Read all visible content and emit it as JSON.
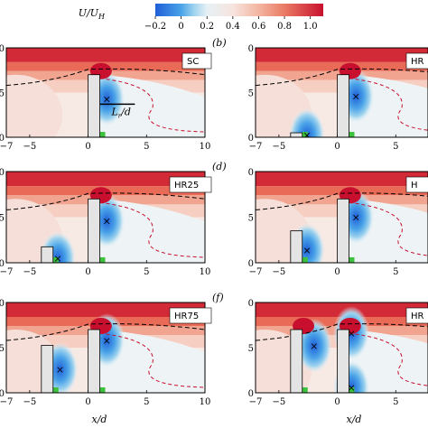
{
  "colorbar": {
    "label": "U/U",
    "label_sub": "H",
    "min": -0.2,
    "max": 1.1,
    "ticks": [
      -0.2,
      0,
      0.2,
      0.4,
      0.6,
      0.8,
      1.0
    ],
    "tick_labels": [
      "−0.2",
      "0",
      "0.2",
      "0.4",
      "0.6",
      "0.8",
      "1.0"
    ],
    "stops": [
      {
        "v": -0.2,
        "color": "#1f5fd8"
      },
      {
        "v": 0.0,
        "color": "#4aa3e8"
      },
      {
        "v": 0.1,
        "color": "#9fd3ee"
      },
      {
        "v": 0.2,
        "color": "#e6f1f6"
      },
      {
        "v": 0.4,
        "color": "#f7e4de"
      },
      {
        "v": 0.6,
        "color": "#f3b6a2"
      },
      {
        "v": 0.8,
        "color": "#ea7a64"
      },
      {
        "v": 1.1,
        "color": "#c8102e"
      }
    ]
  },
  "xlabel": "x/d",
  "ymax_label": "0",
  "ymid_label": "5",
  "ymin_label": "0",
  "recirc_label": "L",
  "recirc_label_sub": "r",
  "recirc_label_tail": "/d",
  "chart_data": [
    {
      "type": "heatmap",
      "panel": "",
      "tag": "SC",
      "col": 0,
      "row": 0,
      "xlim": [
        -7,
        10
      ],
      "ylim": [
        0,
        10
      ],
      "x_ticks": [
        -7,
        -5,
        0,
        5,
        10
      ],
      "x_tick_labels": [
        "−7",
        "−5",
        "0",
        "5",
        "10"
      ],
      "buildings": [
        {
          "x0": 0,
          "x1": 1,
          "h": 7
        }
      ],
      "vortices": [
        [
          1.6,
          4.3
        ]
      ],
      "recirc_marker": true
    },
    {
      "type": "heatmap",
      "panel": "(b)",
      "tag": "HR",
      "col": 1,
      "row": 0,
      "xlim": [
        -7,
        10
      ],
      "ylim": [
        0,
        10
      ],
      "x_ticks": [
        -7,
        -5,
        0,
        5,
        10
      ],
      "x_tick_labels": [
        "−7",
        "−5",
        "0",
        "5",
        "10"
      ],
      "buildings": [
        {
          "x0": -4,
          "x1": -3,
          "h": 0.5
        },
        {
          "x0": 0,
          "x1": 1,
          "h": 7
        }
      ],
      "vortices": [
        [
          1.6,
          4.6
        ],
        [
          -2.6,
          0.25
        ]
      ]
    },
    {
      "type": "heatmap",
      "panel": "",
      "tag": "HR25",
      "col": 0,
      "row": 1,
      "xlim": [
        -7,
        10
      ],
      "ylim": [
        0,
        10
      ],
      "x_ticks": [
        -7,
        -5,
        0,
        5,
        10
      ],
      "x_tick_labels": [
        "−7",
        "−5",
        "0",
        "5",
        "10"
      ],
      "buildings": [
        {
          "x0": -4,
          "x1": -3,
          "h": 1.75
        },
        {
          "x0": 0,
          "x1": 1,
          "h": 7
        }
      ],
      "vortices": [
        [
          1.6,
          4.6
        ],
        [
          -2.6,
          0.5
        ]
      ]
    },
    {
      "type": "heatmap",
      "panel": "(d)",
      "tag": "H",
      "col": 1,
      "row": 1,
      "xlim": [
        -7,
        10
      ],
      "ylim": [
        0,
        10
      ],
      "x_ticks": [
        -7,
        -5,
        0,
        5,
        10
      ],
      "x_tick_labels": [
        "−7",
        "−5",
        "0",
        "5",
        "10"
      ],
      "buildings": [
        {
          "x0": -4,
          "x1": -3,
          "h": 3.5
        },
        {
          "x0": 0,
          "x1": 1,
          "h": 7
        }
      ],
      "vortices": [
        [
          1.6,
          5.0
        ],
        [
          -2.6,
          1.4
        ]
      ]
    },
    {
      "type": "heatmap",
      "panel": "",
      "tag": "HR75",
      "col": 0,
      "row": 2,
      "xlim": [
        -7,
        10
      ],
      "ylim": [
        0,
        10
      ],
      "x_ticks": [
        -7,
        -5,
        0,
        5,
        10
      ],
      "x_tick_labels": [
        "−7",
        "−5",
        "0",
        "5",
        "10"
      ],
      "buildings": [
        {
          "x0": -4,
          "x1": -3,
          "h": 5.25
        },
        {
          "x0": 0,
          "x1": 1,
          "h": 7
        }
      ],
      "vortices": [
        [
          1.6,
          5.8
        ],
        [
          -2.4,
          2.6
        ]
      ]
    },
    {
      "type": "heatmap",
      "panel": "(f)",
      "tag": "HR",
      "col": 1,
      "row": 2,
      "xlim": [
        -7,
        10
      ],
      "ylim": [
        0,
        10
      ],
      "x_ticks": [
        -7,
        -5,
        0,
        5,
        10
      ],
      "x_tick_labels": [
        "−7",
        "−5",
        "0",
        "5",
        "10"
      ],
      "buildings": [
        {
          "x0": -4,
          "x1": -3,
          "h": 7
        },
        {
          "x0": 0,
          "x1": 1,
          "h": 7
        }
      ],
      "vortices": [
        [
          -2.0,
          5.2
        ],
        [
          1.2,
          6.6
        ],
        [
          1.2,
          0.6
        ]
      ]
    }
  ]
}
